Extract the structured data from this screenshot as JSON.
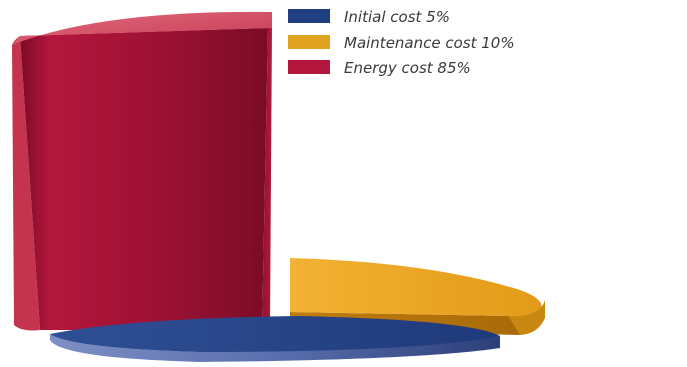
{
  "chart_data": {
    "type": "pie",
    "title": "",
    "slices": [
      {
        "label": "Initial cost 5%",
        "value": 5,
        "color": "#1f3f80"
      },
      {
        "label": "Maintenance cost 10%",
        "value": 10,
        "color": "#e0a21e"
      },
      {
        "label": "Energy cost 85%",
        "value": 85,
        "color": "#b3173d"
      }
    ],
    "legend_position": "top-right",
    "style": "3d-exploded"
  }
}
